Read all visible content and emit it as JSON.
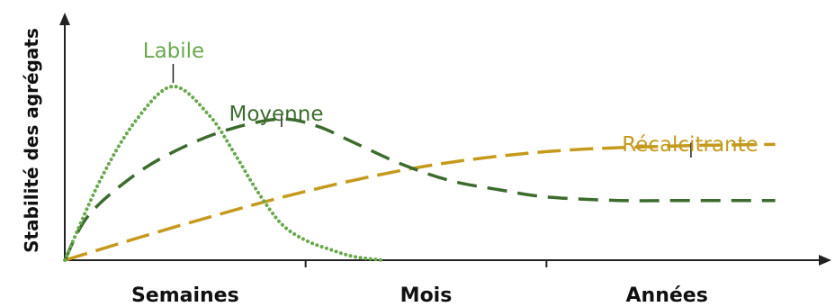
{
  "chart_data": {
    "type": "line",
    "title": "",
    "xlabel": "",
    "ylabel": "Stabilité des agrégats",
    "categories": [
      "Semaines",
      "Mois",
      "Années"
    ],
    "xlim": [
      0,
      3
    ],
    "ylim": [
      0,
      1
    ],
    "grid": false,
    "legend": "inline labels",
    "series": [
      {
        "name": "Labile",
        "color": "#6aa84f",
        "style": "dotted",
        "x": [
          0,
          0.15,
          0.3,
          0.45,
          0.6,
          0.7,
          0.8,
          0.9,
          1.0,
          1.1,
          1.2,
          1.32
        ],
        "y": [
          0,
          0.45,
          0.78,
          0.96,
          0.8,
          0.6,
          0.38,
          0.2,
          0.11,
          0.06,
          0.02,
          0
        ]
      },
      {
        "name": "Moyenne",
        "color": "#3d6b2e",
        "style": "dashed",
        "x": [
          0,
          0.1,
          0.3,
          0.5,
          0.7,
          0.9,
          1.05,
          1.2,
          1.4,
          1.6,
          1.8,
          2.0,
          2.3,
          2.6,
          2.95
        ],
        "y": [
          0,
          0.25,
          0.48,
          0.63,
          0.73,
          0.78,
          0.74,
          0.65,
          0.53,
          0.44,
          0.39,
          0.35,
          0.33,
          0.33,
          0.33
        ]
      },
      {
        "name": "Récalcitrante",
        "color": "#c59a1c",
        "style": "dashed",
        "x": [
          0,
          0.5,
          1.0,
          1.5,
          2.0,
          2.5,
          2.95
        ],
        "y": [
          0,
          0.2,
          0.38,
          0.52,
          0.6,
          0.63,
          0.64
        ]
      }
    ]
  }
}
